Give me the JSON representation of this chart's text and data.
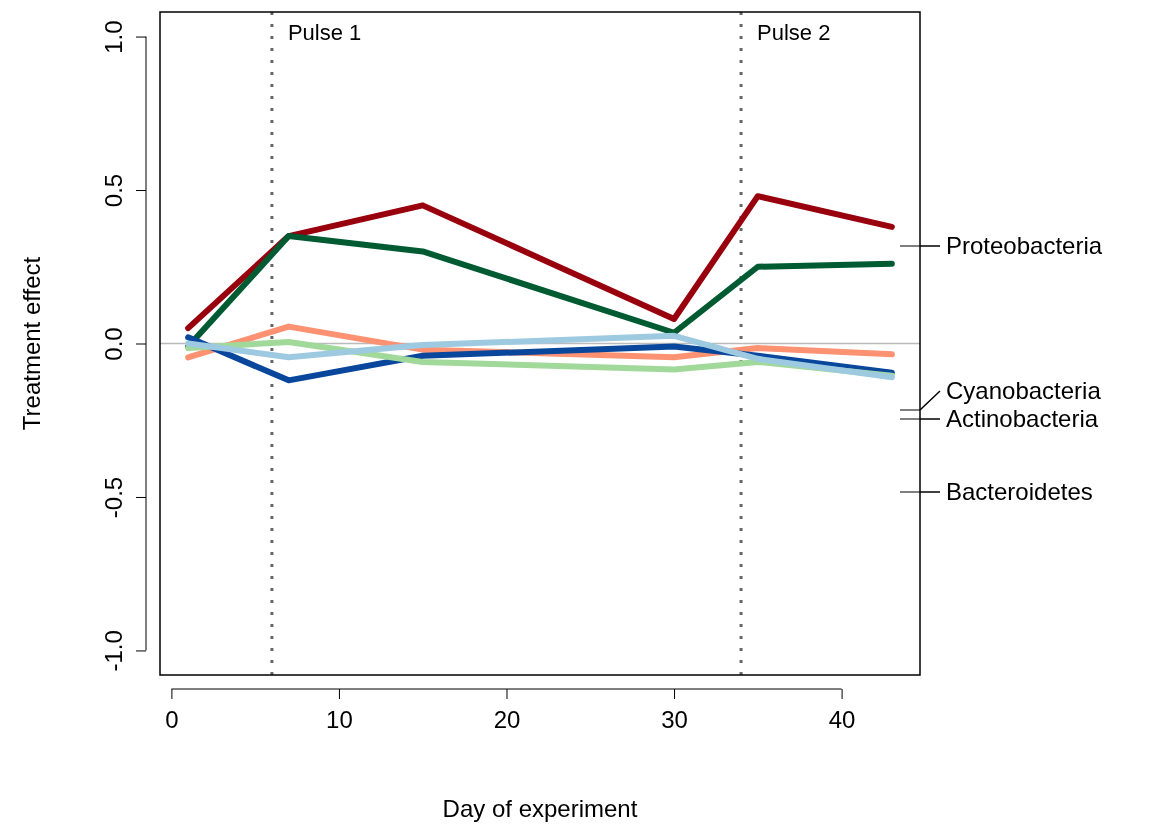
{
  "chart_data": {
    "type": "line",
    "xlabel": "Day of experiment",
    "ylabel": "Treatment effect",
    "x": [
      1,
      7,
      15,
      30,
      35,
      43
    ],
    "xlim": [
      -0.68,
      44.68
    ],
    "xticks": [
      0,
      10,
      20,
      30,
      40
    ],
    "ylim": [
      -1.08,
      1.08
    ],
    "yticks": [
      {
        "value": -1,
        "label": "-1.0"
      },
      {
        "value": -0.5,
        "label": "-0.5"
      },
      {
        "value": 0,
        "label": "0.0"
      },
      {
        "value": 0.5,
        "label": "0.5"
      },
      {
        "value": 1,
        "label": "1.0"
      }
    ],
    "annotations": [
      "Proteobacteria",
      "Cyanobacteria",
      "Actinobacteria",
      "Bacteroidetes"
    ],
    "grid": false,
    "marker": "none",
    "line_style": "solid",
    "series": [
      {
        "color": "#99000d",
        "values": [
          0.05,
          0.35,
          0.45,
          0.08,
          0.48,
          0.38
        ]
      },
      {
        "color": "#005a32",
        "values": [
          -0.01,
          0.35,
          0.3,
          0.035,
          0.25,
          0.26
        ]
      },
      {
        "color": "#fc9272",
        "values": [
          -0.045,
          0.055,
          -0.02,
          -0.045,
          -0.015,
          -0.035
        ]
      },
      {
        "color": "#08479c",
        "values": [
          0.02,
          -0.12,
          -0.04,
          -0.01,
          -0.04,
          -0.095
        ]
      },
      {
        "color": "#a1d99b",
        "values": [
          -0.015,
          0.005,
          -0.06,
          -0.085,
          -0.06,
          -0.105
        ]
      },
      {
        "color": "#9ecae1",
        "values": [
          0.0,
          -0.045,
          -0.005,
          0.025,
          -0.05,
          -0.11
        ]
      }
    ],
    "ref_lines": [
      {
        "axis": "y",
        "value": 0,
        "color": "#bbbbbb",
        "line_style": "solid"
      },
      {
        "axis": "x",
        "value": 6,
        "label": "Pulse 1",
        "color": "#666666",
        "line_style": "dotted"
      },
      {
        "axis": "x",
        "value": 34,
        "label": "Pulse 2",
        "color": "#666666",
        "line_style": "dotted"
      }
    ]
  }
}
